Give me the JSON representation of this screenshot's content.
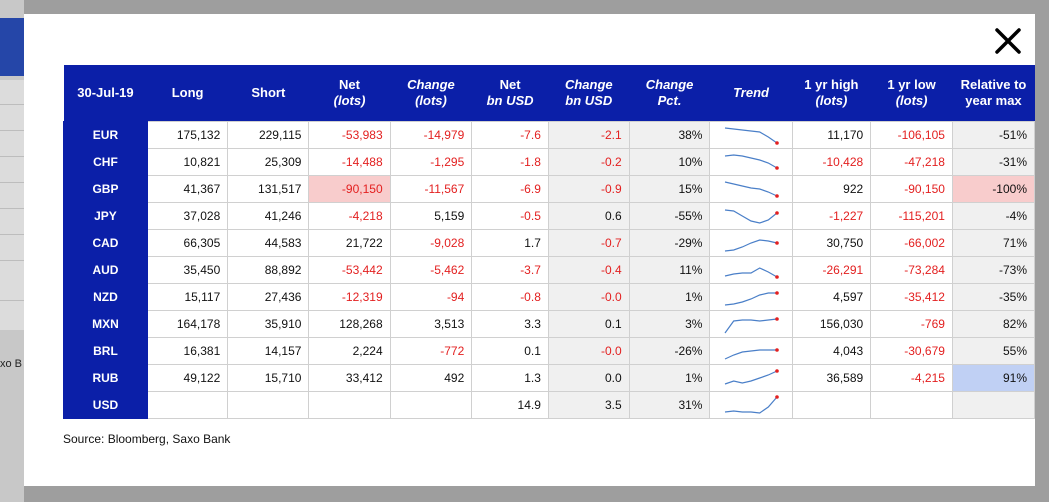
{
  "header": [
    "30-Jul-19",
    "Long",
    "Short",
    "Net (lots)",
    "Change (lots)",
    "Net bn USD",
    "Change bn USD",
    "Change Pct.",
    "Trend",
    "1 yr high (lots)",
    "1 yr low (lots)",
    "Relative to year max"
  ],
  "header_lines": [
    [
      "30-Jul-19",
      ""
    ],
    [
      "Long",
      ""
    ],
    [
      "Short",
      ""
    ],
    [
      "Net",
      "(lots)"
    ],
    [
      "Change",
      "(lots)"
    ],
    [
      "Net",
      "bn USD"
    ],
    [
      "Change",
      "bn USD"
    ],
    [
      "Change",
      "Pct."
    ],
    [
      "Trend",
      ""
    ],
    [
      "1 yr high",
      "(lots)"
    ],
    [
      "1 yr low",
      "(lots)"
    ],
    [
      "Relative to",
      "year max"
    ]
  ],
  "rows": [
    {
      "currency": "EUR",
      "long": "175,132",
      "short": "229,115",
      "net": "-53,983",
      "change": "-14,979",
      "net_usd": "-7.6",
      "change_usd": "-2.1",
      "pct": "38%",
      "high": "11,170",
      "low": "-106,105",
      "rel": "-51%",
      "trend": [
        5,
        6,
        7,
        8,
        9,
        14,
        20
      ]
    },
    {
      "currency": "CHF",
      "long": "10,821",
      "short": "25,309",
      "net": "-14,488",
      "change": "-1,295",
      "net_usd": "-1.8",
      "change_usd": "-0.2",
      "pct": "10%",
      "high": "-10,428",
      "low": "-47,218",
      "rel": "-31%",
      "trend": [
        6,
        5,
        6,
        8,
        10,
        13,
        18
      ]
    },
    {
      "currency": "GBP",
      "long": "41,367",
      "short": "131,517",
      "net": "-90,150",
      "change": "-11,567",
      "net_usd": "-6.9",
      "change_usd": "-0.9",
      "pct": "15%",
      "high": "922",
      "low": "-90,150",
      "rel": "-100%",
      "trend": [
        5,
        7,
        9,
        11,
        12,
        15,
        19
      ]
    },
    {
      "currency": "JPY",
      "long": "37,028",
      "short": "41,246",
      "net": "-4,218",
      "change": "5,159",
      "net_usd": "-0.5",
      "change_usd": "0.6",
      "pct": "-55%",
      "high": "-1,227",
      "low": "-115,201",
      "rel": "-4%",
      "trend": [
        6,
        7,
        12,
        17,
        19,
        16,
        9
      ]
    },
    {
      "currency": "CAD",
      "long": "66,305",
      "short": "44,583",
      "net": "21,722",
      "change": "-9,028",
      "net_usd": "1.7",
      "change_usd": "-0.7",
      "pct": "-29%",
      "high": "30,750",
      "low": "-66,002",
      "rel": "71%",
      "trend": [
        20,
        19,
        16,
        12,
        9,
        10,
        12
      ]
    },
    {
      "currency": "AUD",
      "long": "35,450",
      "short": "88,892",
      "net": "-53,442",
      "change": "-5,462",
      "net_usd": "-3.7",
      "change_usd": "-0.4",
      "pct": "11%",
      "high": "-26,291",
      "low": "-73,284",
      "rel": "-73%",
      "trend": [
        18,
        16,
        15,
        15,
        10,
        14,
        19
      ]
    },
    {
      "currency": "NZD",
      "long": "15,117",
      "short": "27,436",
      "net": "-12,319",
      "change": "-94",
      "net_usd": "-0.8",
      "change_usd": "-0.0",
      "pct": "1%",
      "high": "4,597",
      "low": "-35,412",
      "rel": "-35%",
      "trend": [
        20,
        19,
        17,
        14,
        10,
        8,
        8
      ]
    },
    {
      "currency": "MXN",
      "long": "164,178",
      "short": "35,910",
      "net": "128,268",
      "change": "3,513",
      "net_usd": "3.3",
      "change_usd": "0.1",
      "pct": "3%",
      "high": "156,030",
      "low": "-769",
      "rel": "82%",
      "trend": [
        21,
        9,
        8,
        8,
        9,
        8,
        7
      ]
    },
    {
      "currency": "BRL",
      "long": "16,381",
      "short": "14,157",
      "net": "2,224",
      "change": "-772",
      "net_usd": "0.1",
      "change_usd": "-0.0",
      "pct": "-26%",
      "high": "4,043",
      "low": "-30,679",
      "rel": "55%",
      "trend": [
        20,
        16,
        13,
        12,
        11,
        11,
        11
      ]
    },
    {
      "currency": "RUB",
      "long": "49,122",
      "short": "15,710",
      "net": "33,412",
      "change": "492",
      "net_usd": "1.3",
      "change_usd": "0.0",
      "pct": "1%",
      "high": "36,589",
      "low": "-4,215",
      "rel": "91%",
      "trend": [
        18,
        15,
        17,
        15,
        12,
        9,
        5
      ]
    },
    {
      "currency": "USD",
      "long": "",
      "short": "",
      "net": "",
      "change": "",
      "net_usd": "14.9",
      "change_usd": "3.5",
      "pct": "31%",
      "high": "",
      "low": "",
      "rel": "",
      "trend": [
        19,
        18,
        19,
        19,
        20,
        14,
        4
      ]
    }
  ],
  "source": "Source: Bloomberg, Saxo Bank",
  "background": {
    "cut_text": "xo B"
  },
  "colors": {
    "header_bg": "#0b1fa8",
    "negative": "#e32020",
    "highlight_pink": "#f8cccc",
    "highlight_blue": "#c0d0f4",
    "trend_line": "#4a7fc8",
    "trend_dot": "#e32020"
  },
  "icons": {
    "close": "close-icon"
  }
}
